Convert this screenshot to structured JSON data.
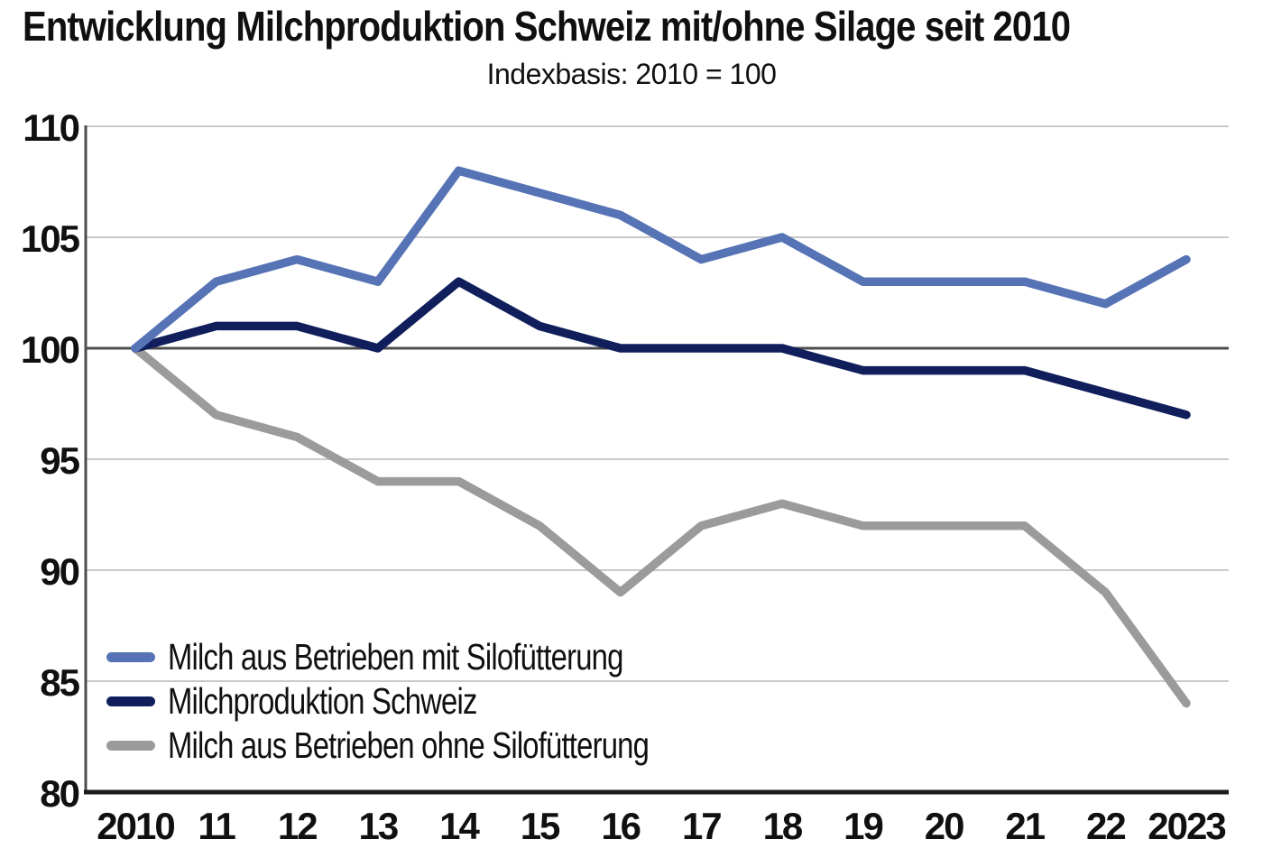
{
  "page": {
    "title": "Entwicklung Milchproduktion Schweiz mit/ohne Silage seit 2010",
    "subtitle": "Indexbasis: 2010 = 100"
  },
  "chart_data": {
    "type": "line",
    "title": "Entwicklung Milchproduktion Schweiz mit/ohne Silage seit 2010",
    "subtitle": "Indexbasis: 2010 = 100",
    "x_labels": [
      "2010",
      "11",
      "12",
      "13",
      "14",
      "15",
      "16",
      "17",
      "18",
      "19",
      "20",
      "21",
      "22",
      "2023"
    ],
    "y_ticks": [
      80,
      85,
      90,
      95,
      100,
      105,
      110
    ],
    "ylim": [
      80,
      110
    ],
    "baseline": 100,
    "grid": true,
    "legend_position": "inside-bottom-left",
    "series": [
      {
        "name": "Milch aus Betrieben mit Silofütterung",
        "color": "#5573b5",
        "values": [
          100,
          103,
          104,
          103,
          108,
          107,
          106,
          104,
          105,
          103,
          103,
          103,
          102,
          104
        ]
      },
      {
        "name": "Milchproduktion Schweiz",
        "color": "#101f5c",
        "values": [
          100,
          101,
          101,
          100,
          103,
          101,
          100,
          100,
          100,
          99,
          99,
          99,
          98,
          97
        ]
      },
      {
        "name": "Milch aus Betrieben ohne Silofütterung",
        "color": "#9b9b9b",
        "values": [
          100,
          97,
          96,
          94,
          94,
          92,
          89,
          92,
          93,
          92,
          92,
          92,
          89,
          84
        ]
      }
    ]
  },
  "colors": {
    "grid": "#c9c9c9",
    "baseline": "#4d4d4d",
    "y_axis": "#4d4d4d",
    "x_axis": "#1b1b1b",
    "text": "#101010"
  }
}
